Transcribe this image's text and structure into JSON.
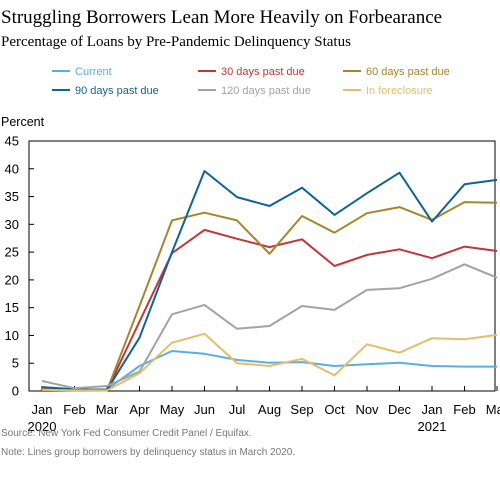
{
  "chart_data": {
    "type": "line",
    "title": "Struggling Borrowers Lean More Heavily on Forbearance",
    "subtitle": "Percentage of Loans by Pre-Pandemic Delinquency Status",
    "ylabel": "Percent",
    "ylim": [
      0,
      45
    ],
    "yticks": [
      0,
      5,
      10,
      15,
      20,
      25,
      30,
      35,
      40,
      45
    ],
    "categories": [
      "Jan",
      "Feb",
      "Mar",
      "Apr",
      "May",
      "Jun",
      "Jul",
      "Aug",
      "Sep",
      "Oct",
      "Nov",
      "Dec",
      "Jan",
      "Feb",
      "Mar"
    ],
    "year_labels": [
      {
        "index": 0,
        "label": "2020"
      },
      {
        "index": 12,
        "label": "2021"
      }
    ],
    "grid": false,
    "legend_position": "top",
    "series": [
      {
        "name": "Current",
        "color": "#5aaee4",
        "values": [
          0.5,
          0.2,
          0.3,
          4.5,
          7.2,
          6.7,
          5.6,
          5.1,
          5.2,
          4.5,
          4.8,
          5.1,
          4.5,
          4.4,
          4.4
        ]
      },
      {
        "name": "30 days past due",
        "color": "#c1363b",
        "values": [
          0.5,
          0.3,
          0.1,
          12.5,
          24.8,
          29.0,
          27.4,
          25.9,
          27.3,
          22.5,
          24.5,
          25.5,
          23.9,
          26.0,
          25.2
        ]
      },
      {
        "name": "60 days past due",
        "color": "#a7862a",
        "values": [
          0.6,
          0.2,
          0.1,
          15.3,
          30.7,
          32.1,
          30.7,
          24.7,
          31.5,
          28.5,
          32.0,
          33.1,
          30.8,
          34.0,
          33.9
        ]
      },
      {
        "name": "90 days past due",
        "color": "#0f6496",
        "values": [
          0.7,
          0.3,
          0.2,
          9.6,
          25.0,
          39.6,
          34.9,
          33.3,
          36.6,
          31.7,
          35.6,
          39.3,
          30.5,
          37.2,
          38.0
        ]
      },
      {
        "name": "120 days past due",
        "color": "#a3a3a3",
        "values": [
          1.8,
          0.5,
          0.9,
          3.5,
          13.8,
          15.5,
          11.2,
          11.7,
          15.3,
          14.6,
          18.2,
          18.5,
          20.2,
          22.8,
          20.4
        ]
      },
      {
        "name": "In foreclosure",
        "color": "#e5bd6c",
        "values": [
          0.2,
          0.1,
          0.1,
          3.2,
          8.7,
          10.3,
          5.0,
          4.5,
          5.8,
          2.8,
          8.4,
          6.9,
          9.5,
          9.3,
          10.1
        ]
      }
    ]
  },
  "notes": {
    "source": "Source: New York Fed Consumer Credit Panel / Equifax.",
    "note": "Note: Lines group borrowers by delinquency status in March 2020."
  }
}
